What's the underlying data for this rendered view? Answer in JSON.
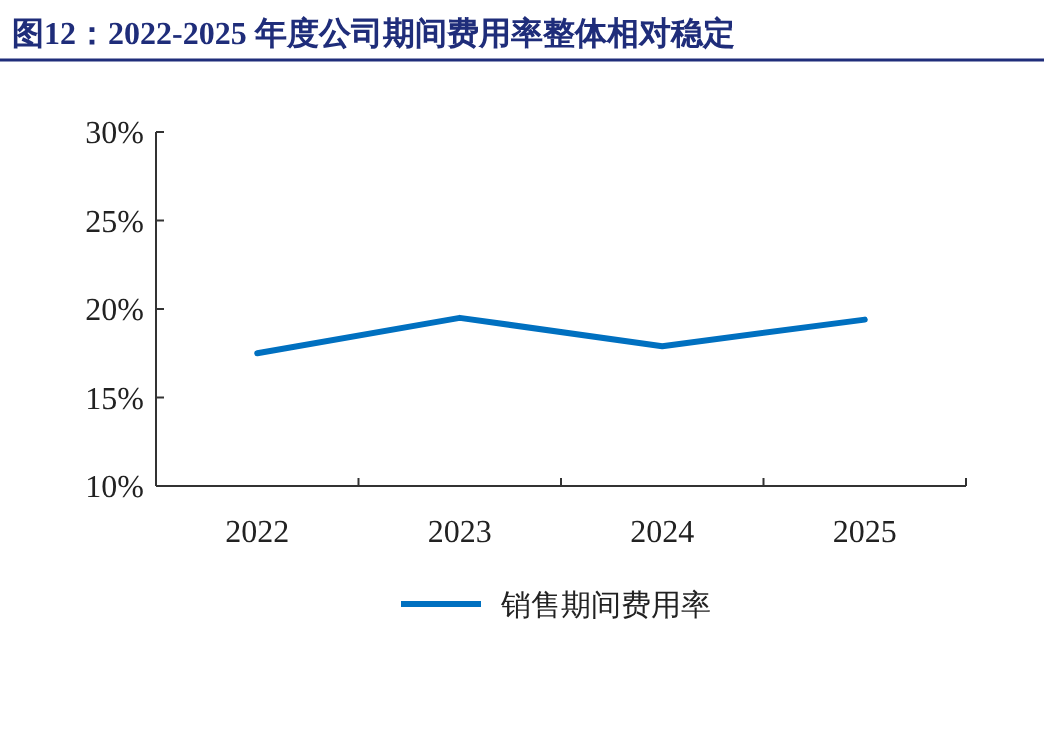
{
  "chart_data": {
    "type": "line",
    "title": "图12：2022-2025 年度公司期间费用率整体相对稳定",
    "categories": [
      "2022",
      "2023",
      "2024",
      "2025"
    ],
    "series": [
      {
        "name": "销售期间费用率",
        "color": "#0070c0",
        "values": [
          17.5,
          19.5,
          17.9,
          19.4
        ]
      }
    ],
    "ylim": [
      10,
      30
    ],
    "yticks": [
      {
        "value": 10,
        "label": "10%"
      },
      {
        "value": 15,
        "label": "15%"
      },
      {
        "value": 20,
        "label": "20%"
      },
      {
        "value": 25,
        "label": "25%"
      },
      {
        "value": 30,
        "label": "30%"
      }
    ],
    "legend": "bottom"
  }
}
